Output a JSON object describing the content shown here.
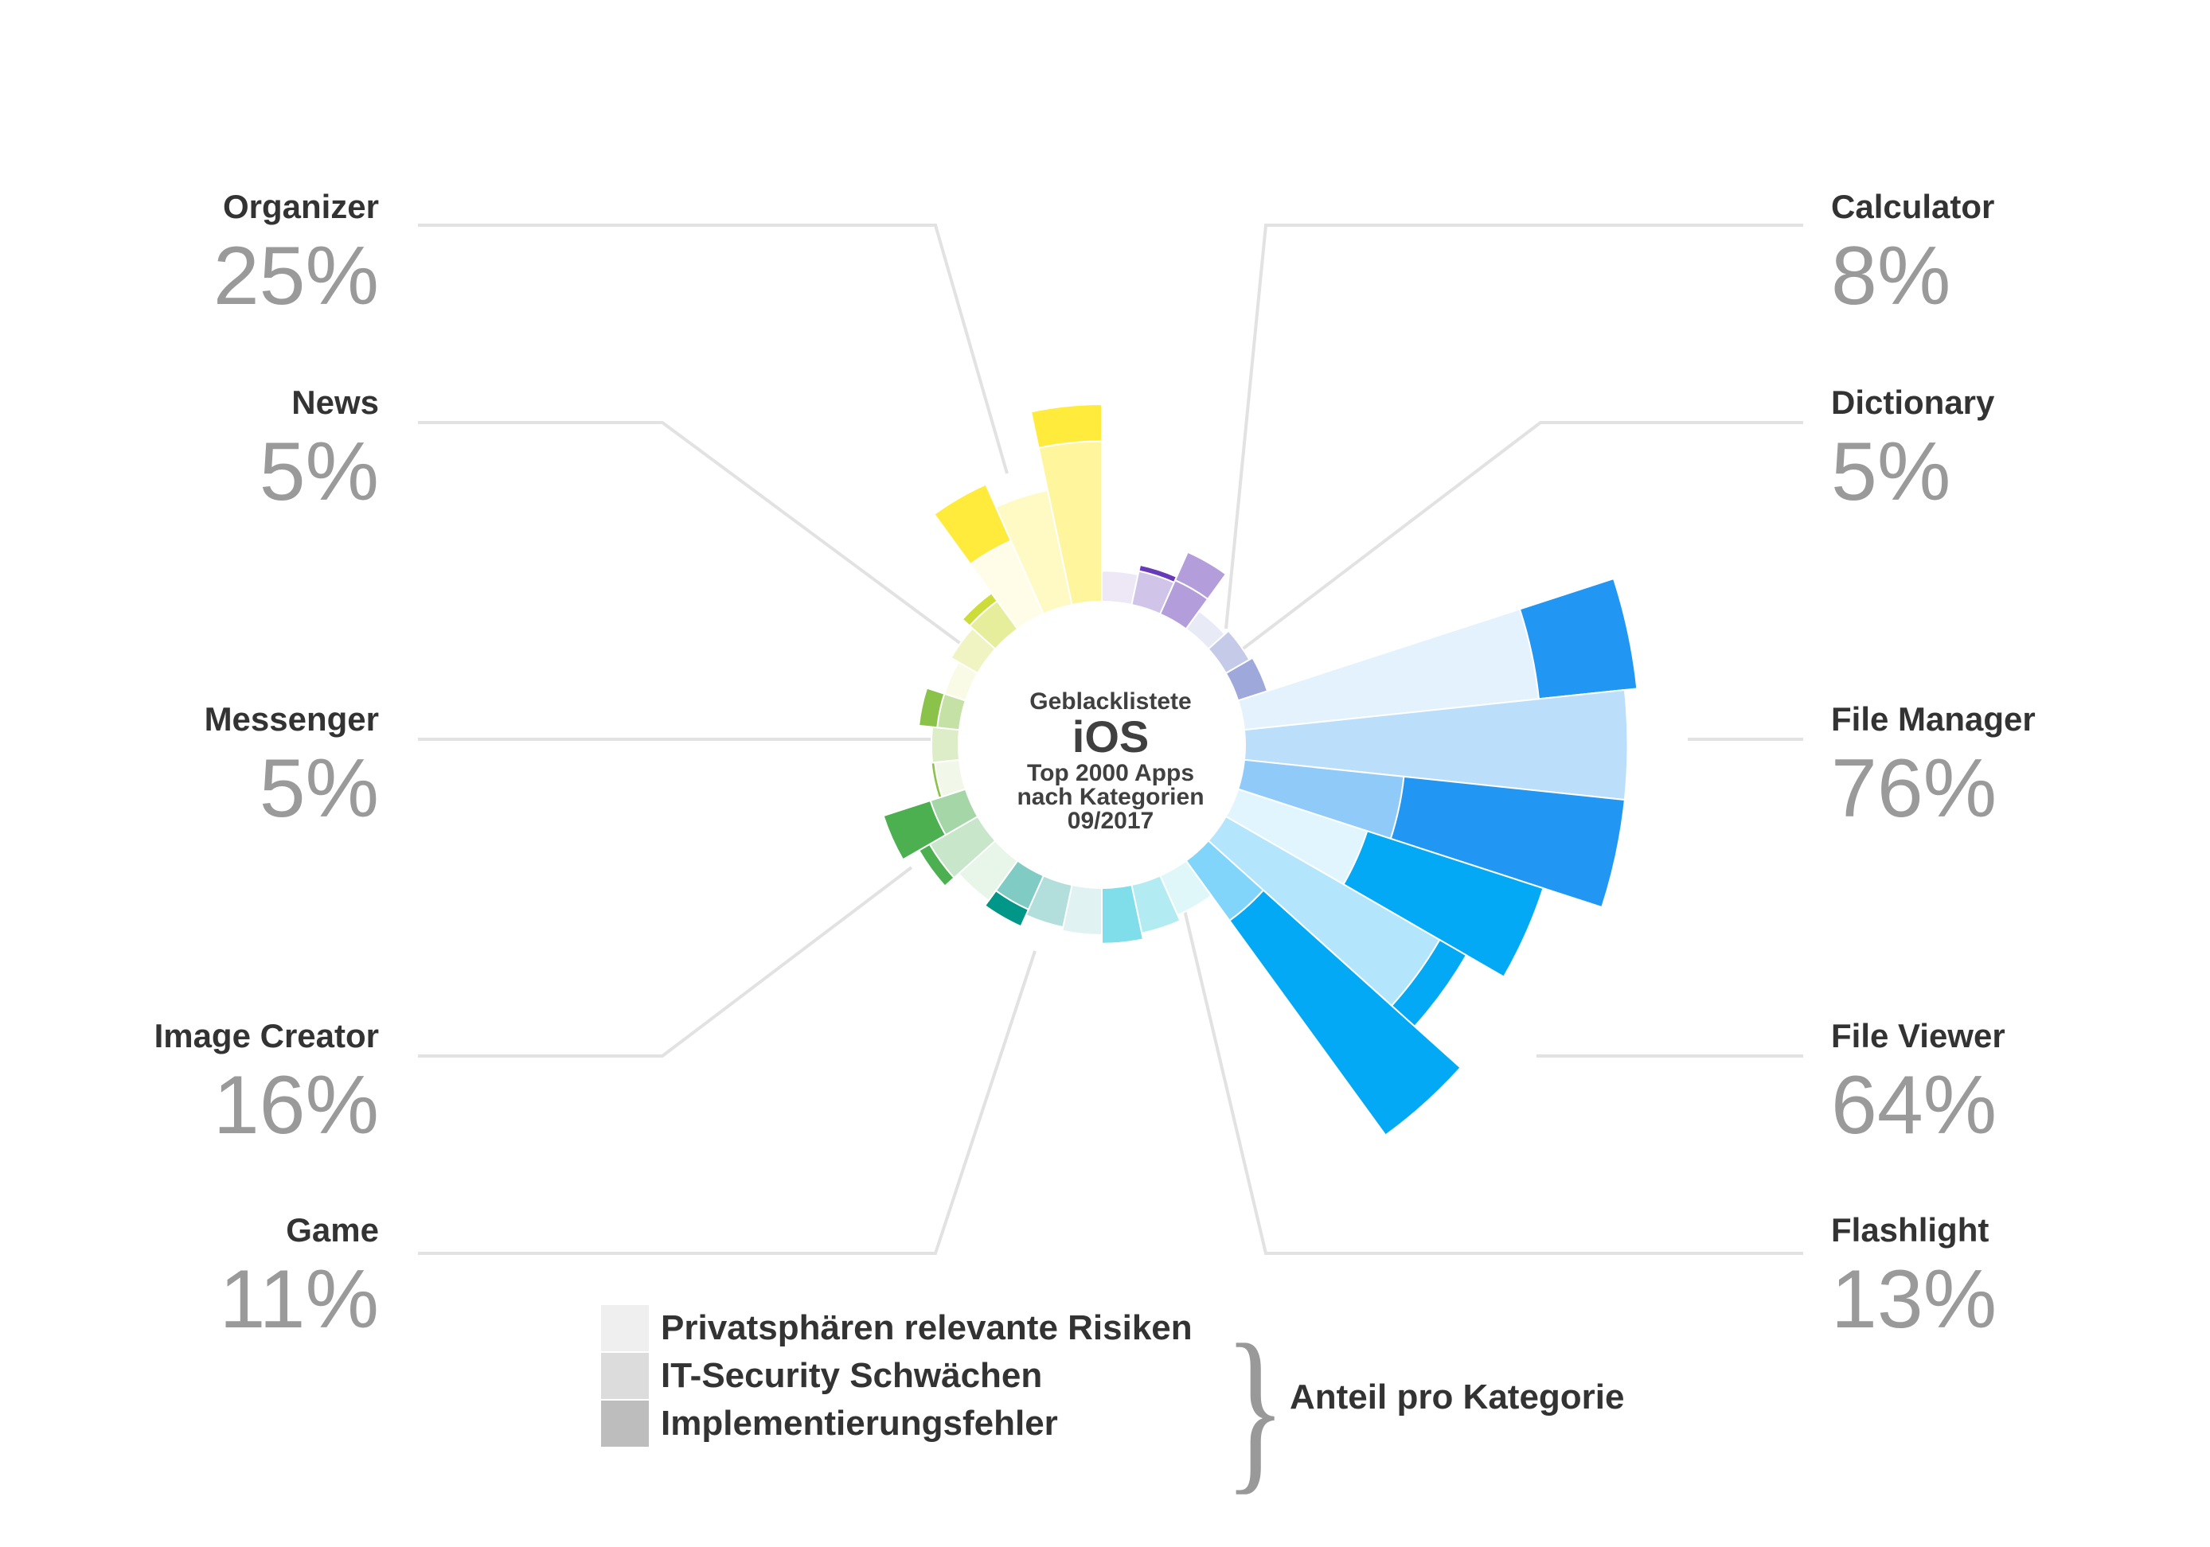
{
  "chart_data": {
    "type": "polar-area",
    "center": {
      "line1": "Geblacklistete",
      "line2": "iOS",
      "line3": "Top 2000 Apps",
      "line4": "nach Kategorien",
      "line5": "09/2017"
    },
    "categories": [
      {
        "name": "Calculator",
        "value": "8%",
        "side": "right",
        "colors": [
          "#ede7f6",
          "#d1c4e9",
          "#b39ddb",
          "#673ab7"
        ],
        "bars": [
          [
            25,
            0,
            0
          ],
          [
            28,
            0,
            5
          ],
          [
            30,
            25,
            0
          ]
        ]
      },
      {
        "name": "Dictionary",
        "value": "5%",
        "side": "right",
        "colors": [
          "#e8eaf6",
          "#c5cae9",
          "#9fa8da",
          "#3f51b5"
        ],
        "bars": [
          [
            18,
            0,
            0
          ],
          [
            22,
            0,
            0
          ],
          [
            25,
            0,
            0
          ]
        ]
      },
      {
        "name": "File Manager",
        "value": "76%",
        "side": "right",
        "colors": [
          "#e3f2fd",
          "#bbdefb",
          "#90caf9",
          "#2196f3"
        ],
        "bars": [
          [
            240,
            0,
            80
          ],
          [
            310,
            0,
            0
          ],
          [
            130,
            0,
            180
          ]
        ]
      },
      {
        "name": "File Viewer",
        "value": "64%",
        "side": "right",
        "colors": [
          "#e1f5fe",
          "#b3e5fc",
          "#81d4fa",
          "#03a9f4"
        ],
        "bars": [
          [
            110,
            0,
            150
          ],
          [
            200,
            0,
            25
          ],
          [
            60,
            0,
            215
          ]
        ]
      },
      {
        "name": "Flashlight",
        "value": "13%",
        "side": "right",
        "colors": [
          "#e0f7fa",
          "#b2ebf2",
          "#80deea",
          "#00bcd4"
        ],
        "bars": [
          [
            35,
            0,
            0
          ],
          [
            40,
            0,
            0
          ],
          [
            45,
            0,
            0
          ]
        ]
      },
      {
        "name": "Game",
        "value": "11%",
        "side": "left",
        "colors": [
          "#e0f2f1",
          "#b2dfdb",
          "#80cbc4",
          "#009688"
        ],
        "bars": [
          [
            38,
            0,
            0
          ],
          [
            35,
            0,
            0
          ],
          [
            30,
            0,
            15
          ]
        ]
      },
      {
        "name": "Image Creator",
        "value": "16%",
        "side": "left",
        "colors": [
          "#e8f5e9",
          "#c8e6c9",
          "#a5d6a7",
          "#4caf50"
        ],
        "bars": [
          [
            40,
            0,
            0
          ],
          [
            45,
            0,
            10
          ],
          [
            30,
            0,
            40
          ]
        ]
      },
      {
        "name": "Messenger",
        "value": "5%",
        "side": "left",
        "colors": [
          "#f1f8e9",
          "#dcedc8",
          "#c5e1a5",
          "#8bc34a"
        ],
        "bars": [
          [
            20,
            0,
            3
          ],
          [
            22,
            0,
            0
          ],
          [
            10,
            0,
            15
          ]
        ]
      },
      {
        "name": "News",
        "value": "5%",
        "side": "left",
        "colors": [
          "#f9fbe7",
          "#f0f4c3",
          "#e6ee9c",
          "#cddc39"
        ],
        "bars": [
          [
            18,
            0,
            0
          ],
          [
            25,
            0,
            0
          ],
          [
            28,
            0,
            8
          ]
        ]
      },
      {
        "name": "Organizer",
        "value": "25%",
        "side": "left",
        "colors": [
          "#fffde7",
          "#fff9c4",
          "#fff59d",
          "#ffeb3b"
        ],
        "bars": [
          [
            65,
            0,
            50
          ],
          [
            95,
            0,
            0
          ],
          [
            130,
            0,
            30
          ]
        ]
      }
    ]
  },
  "legend": {
    "items": [
      {
        "label": "Privatsphären relevante Risiken",
        "color": "#efefef"
      },
      {
        "label": "IT-Security Schwächen",
        "color": "#dcdcdc"
      },
      {
        "label": "Implementierungsfehler",
        "color": "#bdbdbd"
      }
    ],
    "brace_label": "Anteil pro Kategorie"
  }
}
